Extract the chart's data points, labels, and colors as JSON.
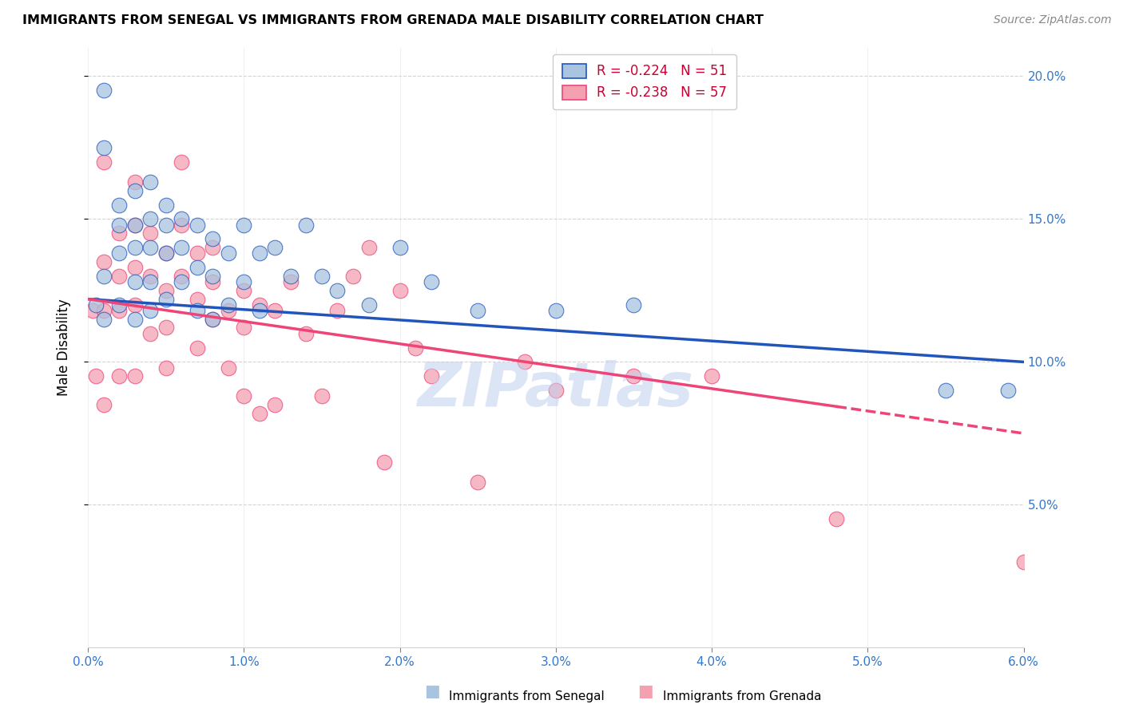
{
  "title": "IMMIGRANTS FROM SENEGAL VS IMMIGRANTS FROM GRENADA MALE DISABILITY CORRELATION CHART",
  "source": "Source: ZipAtlas.com",
  "xlabel_senegal": "Immigrants from Senegal",
  "xlabel_grenada": "Immigrants from Grenada",
  "ylabel": "Male Disability",
  "xlim": [
    0.0,
    0.06
  ],
  "ylim": [
    0.0,
    0.21
  ],
  "xticks": [
    0.0,
    0.01,
    0.02,
    0.03,
    0.04,
    0.05,
    0.06
  ],
  "yticks": [
    0.05,
    0.1,
    0.15,
    0.2
  ],
  "legend_senegal": "R = -0.224   N = 51",
  "legend_grenada": "R = -0.238   N = 57",
  "senegal_color": "#a8c4e0",
  "grenada_color": "#f4a0b0",
  "senegal_line_color": "#2255bb",
  "grenada_line_color": "#ee4477",
  "watermark": "ZIPatlas",
  "senegal_r": -0.224,
  "senegal_n": 51,
  "grenada_r": -0.238,
  "grenada_n": 57,
  "senegal_x": [
    0.0005,
    0.001,
    0.001,
    0.001,
    0.001,
    0.002,
    0.002,
    0.002,
    0.002,
    0.003,
    0.003,
    0.003,
    0.003,
    0.003,
    0.004,
    0.004,
    0.004,
    0.004,
    0.004,
    0.005,
    0.005,
    0.005,
    0.005,
    0.006,
    0.006,
    0.006,
    0.007,
    0.007,
    0.007,
    0.008,
    0.008,
    0.008,
    0.009,
    0.009,
    0.01,
    0.01,
    0.011,
    0.011,
    0.012,
    0.013,
    0.014,
    0.015,
    0.016,
    0.018,
    0.02,
    0.022,
    0.025,
    0.03,
    0.035,
    0.055,
    0.059
  ],
  "senegal_y": [
    0.12,
    0.195,
    0.175,
    0.13,
    0.115,
    0.155,
    0.148,
    0.138,
    0.12,
    0.16,
    0.148,
    0.14,
    0.128,
    0.115,
    0.163,
    0.15,
    0.14,
    0.128,
    0.118,
    0.155,
    0.148,
    0.138,
    0.122,
    0.15,
    0.14,
    0.128,
    0.148,
    0.133,
    0.118,
    0.143,
    0.13,
    0.115,
    0.138,
    0.12,
    0.148,
    0.128,
    0.138,
    0.118,
    0.14,
    0.13,
    0.148,
    0.13,
    0.125,
    0.12,
    0.14,
    0.128,
    0.118,
    0.118,
    0.12,
    0.09,
    0.09
  ],
  "grenada_x": [
    0.0003,
    0.0005,
    0.001,
    0.001,
    0.001,
    0.001,
    0.002,
    0.002,
    0.002,
    0.002,
    0.003,
    0.003,
    0.003,
    0.003,
    0.003,
    0.004,
    0.004,
    0.004,
    0.005,
    0.005,
    0.005,
    0.005,
    0.006,
    0.006,
    0.006,
    0.007,
    0.007,
    0.007,
    0.008,
    0.008,
    0.008,
    0.009,
    0.009,
    0.01,
    0.01,
    0.01,
    0.011,
    0.011,
    0.012,
    0.012,
    0.013,
    0.014,
    0.015,
    0.016,
    0.017,
    0.018,
    0.019,
    0.02,
    0.021,
    0.022,
    0.025,
    0.028,
    0.03,
    0.035,
    0.04,
    0.048,
    0.06
  ],
  "grenada_y": [
    0.118,
    0.095,
    0.17,
    0.135,
    0.118,
    0.085,
    0.145,
    0.13,
    0.118,
    0.095,
    0.163,
    0.148,
    0.133,
    0.12,
    0.095,
    0.145,
    0.13,
    0.11,
    0.138,
    0.125,
    0.112,
    0.098,
    0.17,
    0.148,
    0.13,
    0.138,
    0.122,
    0.105,
    0.14,
    0.128,
    0.115,
    0.118,
    0.098,
    0.125,
    0.112,
    0.088,
    0.12,
    0.082,
    0.118,
    0.085,
    0.128,
    0.11,
    0.088,
    0.118,
    0.13,
    0.14,
    0.065,
    0.125,
    0.105,
    0.095,
    0.058,
    0.1,
    0.09,
    0.095,
    0.095,
    0.045,
    0.03
  ],
  "senegal_line_y0": 0.122,
  "senegal_line_y1": 0.1,
  "grenada_line_y0": 0.122,
  "grenada_line_y1": 0.075,
  "grenada_solid_xend": 0.048,
  "grenada_dashed_xend": 0.06
}
